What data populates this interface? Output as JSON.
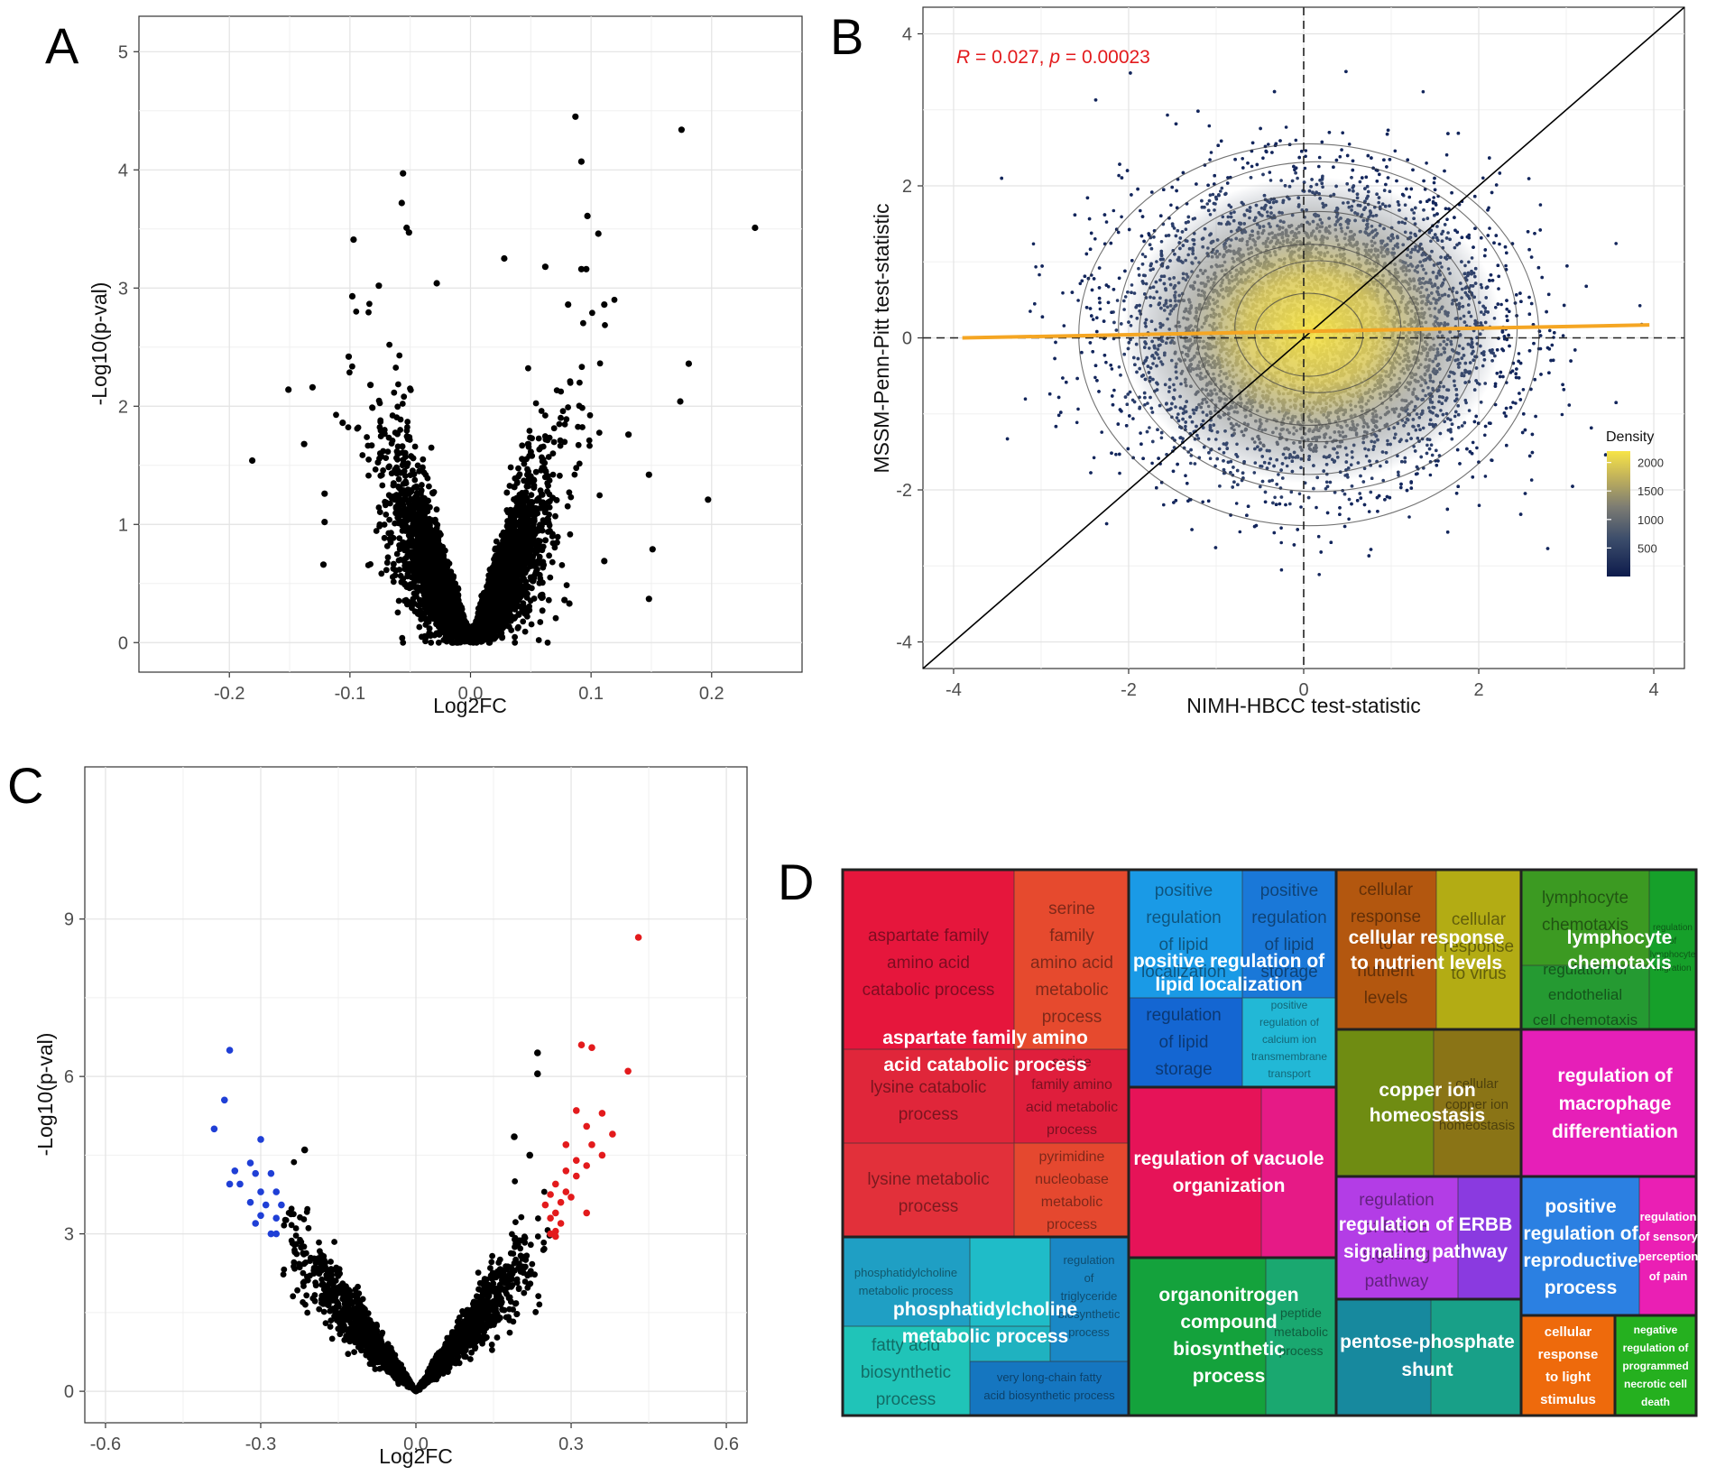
{
  "chart_data": [
    {
      "panel": "A",
      "type": "scatter",
      "title": "",
      "xlabel": "Log2FC",
      "ylabel": "-Log10(p-val)",
      "xlim": [
        -0.275,
        0.275
      ],
      "ylim": [
        -0.25,
        5.3
      ],
      "xticks": [
        -0.2,
        -0.1,
        0.0,
        0.1,
        0.2
      ],
      "xtick_labels": [
        "-0.2",
        "-0.1",
        "0.0",
        "0.1",
        "0.2"
      ],
      "yticks": [
        0,
        1,
        2,
        3,
        4,
        5
      ],
      "ytick_labels": [
        "0",
        "1",
        "2",
        "3",
        "4",
        "5"
      ],
      "grid": true,
      "point_color": "#000000",
      "outliers": [
        {
          "x": -0.181,
          "y": 1.54
        },
        {
          "x": -0.151,
          "y": 2.14
        },
        {
          "x": -0.131,
          "y": 2.16
        },
        {
          "x": -0.138,
          "y": 1.68
        },
        {
          "x": -0.121,
          "y": 1.26
        },
        {
          "x": -0.121,
          "y": 1.02
        },
        {
          "x": -0.122,
          "y": 0.66
        },
        {
          "x": -0.106,
          "y": 1.86
        },
        {
          "x": -0.101,
          "y": 2.42
        },
        {
          "x": -0.098,
          "y": 2.93
        },
        {
          "x": -0.097,
          "y": 3.41
        },
        {
          "x": -0.083,
          "y": 2.18
        },
        {
          "x": -0.056,
          "y": 3.97
        },
        {
          "x": -0.057,
          "y": 3.72
        },
        {
          "x": -0.053,
          "y": 3.51
        },
        {
          "x": -0.051,
          "y": 3.47
        },
        {
          "x": -0.076,
          "y": 3.02
        },
        {
          "x": -0.028,
          "y": 3.04
        },
        {
          "x": 0.028,
          "y": 3.25
        },
        {
          "x": 0.062,
          "y": 3.18
        },
        {
          "x": 0.087,
          "y": 4.45
        },
        {
          "x": 0.092,
          "y": 4.07
        },
        {
          "x": 0.097,
          "y": 3.61
        },
        {
          "x": 0.106,
          "y": 3.46
        },
        {
          "x": 0.092,
          "y": 3.16
        },
        {
          "x": 0.096,
          "y": 3.16
        },
        {
          "x": 0.111,
          "y": 2.86
        },
        {
          "x": 0.081,
          "y": 2.86
        },
        {
          "x": 0.175,
          "y": 4.34
        },
        {
          "x": 0.236,
          "y": 3.51
        },
        {
          "x": 0.181,
          "y": 2.36
        },
        {
          "x": 0.174,
          "y": 2.04
        },
        {
          "x": 0.197,
          "y": 1.21
        },
        {
          "x": 0.148,
          "y": 1.42
        },
        {
          "x": 0.151,
          "y": 0.79
        },
        {
          "x": 0.148,
          "y": 0.37
        },
        {
          "x": 0.131,
          "y": 1.76
        },
        {
          "x": 0.111,
          "y": 0.69
        },
        {
          "x": 0.082,
          "y": 0.33
        },
        {
          "x": 0.078,
          "y": 0.36
        }
      ],
      "bulk_points_note": "~8000 genes forming a V-shaped volcano cloud"
    },
    {
      "panel": "B",
      "type": "scatter",
      "title": "",
      "xlabel": "NIMH-HBCC test-statistic",
      "ylabel": "MSSM-Penn-Pitt test-statistic",
      "xlim": [
        -4.35,
        4.35
      ],
      "ylim": [
        -4.35,
        4.35
      ],
      "xticks": [
        -4,
        -2,
        0,
        2,
        4
      ],
      "xtick_labels": [
        "-4",
        "-2",
        "0",
        "2",
        "4"
      ],
      "yticks": [
        -4,
        -2,
        0,
        2,
        4
      ],
      "ytick_labels": [
        "-4",
        "-2",
        "0",
        "2",
        "4"
      ],
      "grid": true,
      "annotation": {
        "r_label": "R",
        "r_text": " = 0.027, ",
        "p_label": "p",
        "p_text": " = 0.00023",
        "color": "#e31a1c"
      },
      "identity_line": {
        "slope": 1,
        "intercept": 0,
        "color": "#000000"
      },
      "regression_line": {
        "x": [
          -3.9,
          3.95
        ],
        "y": [
          0.0,
          0.17
        ],
        "color": "#f5a623"
      },
      "reference_lines": {
        "x": 0,
        "y": 0,
        "style": "dashed"
      },
      "legend": {
        "title": "Density",
        "placement": "bottom-right",
        "ticks": [
          2000,
          1500,
          1000,
          500
        ],
        "tick_labels": [
          "2000",
          "1500",
          "1000",
          "500"
        ],
        "range": [
          0,
          2200
        ],
        "colors": [
          "#0d1b4c",
          "#3c4d6b",
          "#7b7b73",
          "#c4b45a",
          "#f7e447"
        ]
      },
      "density_center": {
        "x": 0.1,
        "y": 0.1
      },
      "points_note": "~15000 genes, bivariate cloud colored by local density"
    },
    {
      "panel": "C",
      "type": "scatter",
      "title": "",
      "xlabel": "Log2FC",
      "ylabel": "-Log10(p-val)",
      "xlim": [
        -0.64,
        0.64
      ],
      "ylim": [
        -0.6,
        11.9
      ],
      "xticks": [
        -0.6,
        -0.3,
        0.0,
        0.3,
        0.6
      ],
      "xtick_labels": [
        "-0.6",
        "-0.3",
        "0.0",
        "0.3",
        "0.6"
      ],
      "yticks": [
        0,
        3,
        6,
        9
      ],
      "ytick_labels": [
        "0",
        "3",
        "6",
        "9"
      ],
      "grid": true,
      "series": [
        {
          "name": "down-regulated",
          "color": "#1f3fd6",
          "points": [
            {
              "x": -0.36,
              "y": 6.5
            },
            {
              "x": -0.37,
              "y": 5.55
            },
            {
              "x": -0.39,
              "y": 5.0
            },
            {
              "x": -0.3,
              "y": 4.8
            },
            {
              "x": -0.32,
              "y": 4.35
            },
            {
              "x": -0.35,
              "y": 4.2
            },
            {
              "x": -0.31,
              "y": 4.15
            },
            {
              "x": -0.28,
              "y": 4.15
            },
            {
              "x": -0.36,
              "y": 3.95
            },
            {
              "x": -0.34,
              "y": 3.95
            },
            {
              "x": -0.3,
              "y": 3.8
            },
            {
              "x": -0.27,
              "y": 3.8
            },
            {
              "x": -0.32,
              "y": 3.6
            },
            {
              "x": -0.29,
              "y": 3.55
            },
            {
              "x": -0.26,
              "y": 3.55
            },
            {
              "x": -0.3,
              "y": 3.35
            },
            {
              "x": -0.27,
              "y": 3.3
            },
            {
              "x": -0.31,
              "y": 3.2
            },
            {
              "x": -0.28,
              "y": 3.0
            },
            {
              "x": -0.27,
              "y": 3.0
            }
          ]
        },
        {
          "name": "up-regulated",
          "color": "#e31a1c",
          "points": [
            {
              "x": 0.43,
              "y": 8.65
            },
            {
              "x": 0.32,
              "y": 6.6
            },
            {
              "x": 0.34,
              "y": 6.55
            },
            {
              "x": 0.41,
              "y": 6.1
            },
            {
              "x": 0.31,
              "y": 5.35
            },
            {
              "x": 0.36,
              "y": 5.3
            },
            {
              "x": 0.33,
              "y": 5.05
            },
            {
              "x": 0.38,
              "y": 4.9
            },
            {
              "x": 0.34,
              "y": 4.7
            },
            {
              "x": 0.29,
              "y": 4.7
            },
            {
              "x": 0.36,
              "y": 4.5
            },
            {
              "x": 0.31,
              "y": 4.4
            },
            {
              "x": 0.33,
              "y": 4.3
            },
            {
              "x": 0.29,
              "y": 4.2
            },
            {
              "x": 0.31,
              "y": 4.1
            },
            {
              "x": 0.27,
              "y": 3.95
            },
            {
              "x": 0.29,
              "y": 3.8
            },
            {
              "x": 0.26,
              "y": 3.75
            },
            {
              "x": 0.3,
              "y": 3.7
            },
            {
              "x": 0.28,
              "y": 3.6
            },
            {
              "x": 0.25,
              "y": 3.55
            },
            {
              "x": 0.33,
              "y": 3.4
            },
            {
              "x": 0.27,
              "y": 3.4
            },
            {
              "x": 0.26,
              "y": 3.3
            },
            {
              "x": 0.28,
              "y": 3.2
            },
            {
              "x": 0.27,
              "y": 3.05
            },
            {
              "x": 0.26,
              "y": 3.0
            },
            {
              "x": 0.27,
              "y": 2.95
            }
          ]
        },
        {
          "name": "not significant",
          "color": "#000000",
          "points": [
            {
              "x": 0.235,
              "y": 6.45
            },
            {
              "x": 0.235,
              "y": 6.05
            },
            {
              "x": 0.19,
              "y": 4.85
            },
            {
              "x": 0.22,
              "y": 4.5
            },
            {
              "x": -0.215,
              "y": 4.6
            }
          ]
        }
      ],
      "bulk_points_note": "~3000 non-significant genes forming a V-shaped cloud"
    },
    {
      "panel": "D",
      "type": "treemap",
      "title": "",
      "groups": [
        {
          "label": "aspartate family amino acid catabolic process",
          "color": "#e6163c",
          "tiles": [
            "aspartate family amino acid catabolic process",
            "serine family amino acid metabolic process",
            "lysine catabolic process",
            "serine family amino acid metabolic process",
            "lysine metabolic process",
            "pyrimidine nucleobase metabolic process"
          ]
        },
        {
          "label": "positive regulation of lipid localization",
          "color": "#1a8fe0",
          "tiles": [
            "positive regulation of lipid localization",
            "positive regulation of lipid storage",
            "regulation of lipid storage",
            "positive regulation of calcium ion transmembrane transport"
          ]
        },
        {
          "label": "cellular response to nutrient levels",
          "color": "#b35a0e",
          "tiles": [
            "cellular response to nutrient levels",
            "cellular response to virus"
          ]
        },
        {
          "label": "lymphocyte chemotaxis",
          "color": "#2f9a1a",
          "tiles": [
            "lymphocyte chemotaxis",
            "regulation of lymphocyte migration",
            "regulation of endothelial cell chemotaxis"
          ]
        },
        {
          "label": "copper ion homeostasis",
          "color": "#6f8b14",
          "tiles": [
            "copper ion homeostasis",
            "cellular copper ion homeostasis"
          ]
        },
        {
          "label": "regulation of macrophage differentiation",
          "color": "#e61fb8",
          "tiles": []
        },
        {
          "label": "regulation of vacuole organization",
          "color": "#e6135c",
          "tiles": []
        },
        {
          "label": "regulation of ERBB signaling pathway",
          "color": "#a33ae0",
          "tiles": [
            "regulation of ERBB signaling pathway"
          ]
        },
        {
          "label": "positive regulation of reproductive process",
          "color": "#2b7ee0",
          "tiles": [
            "regulation of sensory perception of pain"
          ]
        },
        {
          "label": "phosphatidylcholine metabolic process",
          "color": "#1fb0c4",
          "tiles": [
            "phosphatidylcholine metabolic process",
            "regulation of triglyceride biosynthetic process",
            "fatty acid biosynthetic process",
            "very long-chain fatty acid biosynthetic process"
          ]
        },
        {
          "label": "organonitrogen compound biosynthetic process",
          "color": "#1a9e3a",
          "tiles": [
            "peptide metabolic process"
          ]
        },
        {
          "label": "pentose-phosphate shunt",
          "color": "#178a9e",
          "tiles": []
        },
        {
          "label": "cellular response to light stimulus",
          "color": "#ee6a0c",
          "tiles": []
        },
        {
          "label": "negative regulation of programmed necrotic cell death",
          "color": "#25b01f",
          "tiles": []
        }
      ]
    }
  ],
  "panels": {
    "A": {
      "letter": "A"
    },
    "B": {
      "letter": "B"
    },
    "C": {
      "letter": "C"
    },
    "D": {
      "letter": "D"
    }
  },
  "treemap": {
    "aspartate_big": [
      "aspartate family amino",
      "acid catabolic process"
    ],
    "aspartate_small": [
      "aspartate family",
      "amino acid",
      "catabolic process"
    ],
    "serine1": [
      "serine",
      "family",
      "amino acid",
      "metabolic",
      "process"
    ],
    "lysine_cat": [
      "lysine catabolic",
      "process"
    ],
    "serine2": [
      "serine",
      "family amino",
      "acid metabolic",
      "process"
    ],
    "lysine_met": [
      "lysine metabolic",
      "process"
    ],
    "pyrimidine": [
      "pyrimidine",
      "nucleobase",
      "metabolic",
      "process"
    ],
    "pos_lipid_loc": [
      "positive",
      "regulation",
      "of lipid",
      "localization"
    ],
    "pos_lipid_storage": [
      "positive",
      "regulation",
      "of lipid",
      "storage"
    ],
    "pos_lipid_big": [
      "positive regulation of",
      "lipid localization"
    ],
    "reg_lipid_storage": [
      "regulation",
      "of lipid",
      "storage"
    ],
    "calcium": [
      "positive",
      "regulation of",
      "calcium ion",
      "transmembrane",
      "transport"
    ],
    "nutrient_small": [
      "cellular",
      "response",
      "to",
      "nutrient",
      "levels"
    ],
    "virus": [
      "cellular",
      "response",
      "to virus"
    ],
    "nutrient_big": [
      "cellular response",
      "to nutrient levels"
    ],
    "lymph_small": [
      "lymphocyte",
      "chemotaxis"
    ],
    "lymph_big": [
      "lymphocyte",
      "chemotaxis"
    ],
    "lymph_migration": [
      "regulation",
      "of",
      "lymphocyte",
      "migration"
    ],
    "endothelial": [
      "regulation of",
      "endothelial",
      "cell chemotaxis"
    ],
    "copper_big": [
      "copper ion",
      "homeostasis"
    ],
    "copper_small": [
      "cellular",
      "copper ion",
      "homeostasis"
    ],
    "macrophage": [
      "regulation of",
      "macrophage",
      "differentiation"
    ],
    "vacuole": [
      "regulation of vacuole",
      "organization"
    ],
    "erbb_small": [
      "regulation",
      "of ERBB",
      "signaling",
      "pathway"
    ],
    "erbb_big": [
      "regulation of ERBB",
      "signaling pathway"
    ],
    "reproductive": [
      "positive",
      "regulation of",
      "reproductive",
      "process"
    ],
    "sensory": [
      "regulation",
      "of sensory",
      "perception",
      "of pain"
    ],
    "pc_small": [
      "phosphatidylcholine",
      "metabolic process"
    ],
    "pc_big": [
      "phosphatidylcholine",
      "metabolic process"
    ],
    "triglyceride": [
      "regulation",
      "of",
      "triglyceride",
      "biosynthetic",
      "process"
    ],
    "fatty": [
      "fatty acid",
      "biosynthetic",
      "process"
    ],
    "vlcfa": [
      "very long-chain fatty",
      "acid biosynthetic process"
    ],
    "organonitrogen": [
      "organonitrogen",
      "compound",
      "biosynthetic",
      "process"
    ],
    "peptide": [
      "peptide",
      "metabolic",
      "process"
    ],
    "pentose": [
      "pentose-phosphate",
      "shunt"
    ],
    "light": [
      "cellular",
      "response",
      "to light",
      "stimulus"
    ],
    "necrotic": [
      "negative",
      "regulation of",
      "programmed",
      "necrotic cell",
      "death"
    ]
  }
}
